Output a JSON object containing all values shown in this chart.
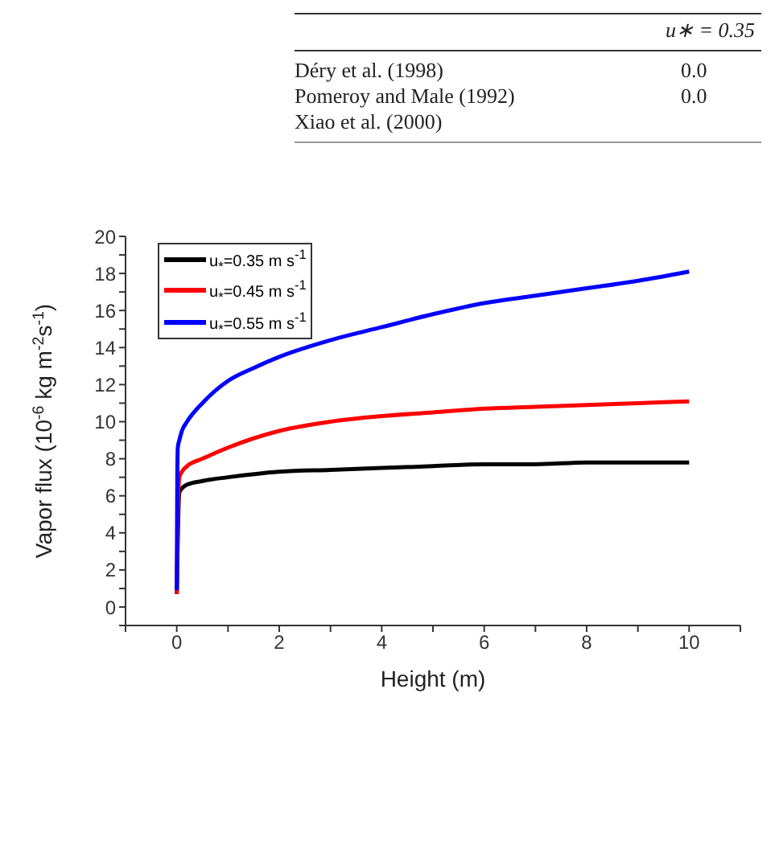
{
  "chart_data": {
    "type": "line",
    "xlabel": "Height (m)",
    "ylabel": "Vapor flux (10$^{-6}$ kg m$^{-2}$s$^{-1}$)",
    "annotations": [
      "u∗ = 0.35",
      "Déry et al. (1998)",
      "Pomeroy and Male (1992)",
      "Xiao et al. (2000)",
      "0.0",
      "0.0"
    ],
    "series": [
      {
        "name": "u$_{*}$=0.35 m s$^{-1}$",
        "color": "#000000",
        "x": [
          0,
          0.05,
          0.1,
          0.2,
          0.5,
          1,
          2,
          3,
          4,
          5,
          6,
          7,
          8,
          9,
          10
        ],
        "values": [
          0.7,
          6.2,
          6.4,
          6.6,
          6.8,
          7.0,
          7.3,
          7.4,
          7.5,
          7.6,
          7.7,
          7.7,
          7.8,
          7.8,
          7.8
        ]
      },
      {
        "name": "u$_{*}$=0.45 m s$^{-1}$",
        "color": "#ff0000",
        "x": [
          0,
          0.02,
          0.05,
          0.1,
          0.2,
          0.5,
          1,
          2,
          3,
          4,
          5,
          6,
          7,
          8,
          9,
          10
        ],
        "values": [
          0.7,
          5.0,
          7.0,
          7.3,
          7.6,
          8.0,
          8.6,
          9.5,
          10.0,
          10.3,
          10.5,
          10.7,
          10.8,
          10.9,
          11.0,
          11.1
        ]
      },
      {
        "name": "u$_{*}$=0.55 m s$^{-1}$",
        "color": "#0000ff",
        "x": [
          0,
          0.01,
          0.02,
          0.05,
          0.1,
          0.2,
          0.5,
          1,
          1.5,
          2,
          3,
          4,
          5,
          6,
          7,
          8,
          9,
          10
        ],
        "values": [
          0.9,
          7.0,
          8.6,
          9.0,
          9.5,
          10.0,
          11.0,
          12.2,
          12.9,
          13.5,
          14.4,
          15.1,
          15.8,
          16.4,
          16.8,
          17.2,
          17.6,
          18.1
        ]
      }
    ],
    "xlim": [
      -1,
      11
    ],
    "xticks": [
      {
        "value": -1,
        "label": null
      },
      0,
      {
        "value": 1,
        "label": null
      },
      2,
      {
        "value": 3,
        "label": null
      },
      4,
      {
        "value": 5,
        "label": null
      },
      6,
      {
        "value": 7,
        "label": null
      },
      8,
      {
        "value": 9,
        "label": null
      },
      10,
      {
        "value": 11,
        "label": null
      }
    ],
    "ylim": [
      -1,
      20
    ],
    "yticks": [
      {
        "value": -1,
        "label": null
      },
      0,
      {
        "value": 1,
        "label": null
      },
      2,
      {
        "value": 3,
        "label": null
      },
      4,
      {
        "value": 5,
        "label": null
      },
      6,
      {
        "value": 7,
        "label": null
      },
      8,
      {
        "value": 9,
        "label": null
      },
      10,
      {
        "value": 11,
        "label": null
      },
      12,
      {
        "value": 13,
        "label": null
      },
      14,
      {
        "value": 15,
        "label": null
      },
      16,
      {
        "value": 17,
        "label": null
      },
      18,
      {
        "value": 19,
        "label": null
      },
      20
    ],
    "legend": "top left",
    "grid": false,
    "marker": "none",
    "line_style": "solid"
  }
}
